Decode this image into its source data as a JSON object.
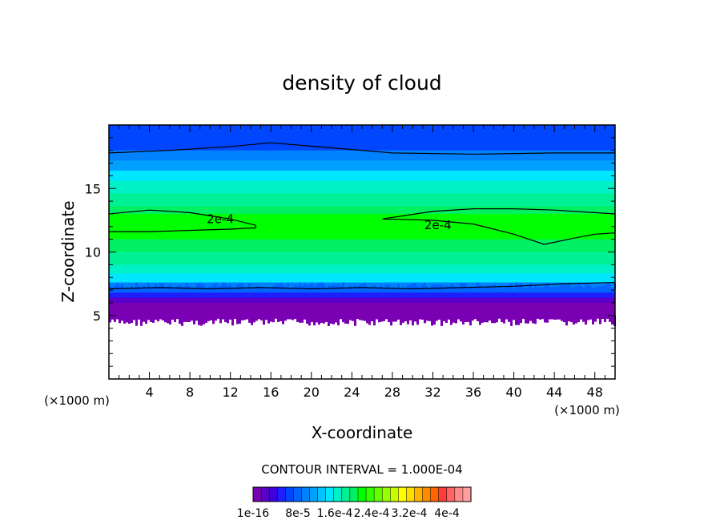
{
  "chart_data": {
    "type": "heatmap",
    "title": "density of cloud",
    "xlabel": "X-coordinate",
    "ylabel": "Z-coordinate",
    "x_unit": "(×1000 m)",
    "z_unit": "(×1000 m)",
    "xlim": [
      0,
      50
    ],
    "ylim": [
      0,
      20
    ],
    "x_ticks": [
      4,
      8,
      12,
      16,
      20,
      24,
      28,
      32,
      36,
      40,
      44,
      48
    ],
    "y_ticks": [
      5,
      10,
      15
    ],
    "contour_interval_text": "CONTOUR INTERVAL = 1.000E-04",
    "contour_label": "2e-4",
    "colorbar_labels": [
      "1e-16",
      "8e-5",
      "1.6e-4",
      "2.4e-4",
      "3.2e-4",
      "4e-4"
    ],
    "colorbar_colors": [
      "#7a00b4",
      "#5a00c8",
      "#3c00dc",
      "#1e1eff",
      "#0046ff",
      "#0064ff",
      "#0082ff",
      "#00a0ff",
      "#00c3ff",
      "#00e6ff",
      "#00f0c8",
      "#00f096",
      "#00f064",
      "#00ff00",
      "#32ff00",
      "#64ff00",
      "#96ff00",
      "#c8ff00",
      "#ffff00",
      "#ffdc00",
      "#ffb400",
      "#ff8c00",
      "#ff6400",
      "#ff3c3c",
      "#ff6464",
      "#ff8c8c",
      "#ffa0a0"
    ],
    "layers": [
      {
        "z_bottom": 18.0,
        "z_top": 20.0,
        "value": 7e-05
      },
      {
        "z_bottom": 17.2,
        "z_top": 18.0,
        "value": 0.0001
      },
      {
        "z_bottom": 16.4,
        "z_top": 17.2,
        "value": 0.00012
      },
      {
        "z_bottom": 15.6,
        "z_top": 16.4,
        "value": 0.00014
      },
      {
        "z_bottom": 14.6,
        "z_top": 15.6,
        "value": 0.00016
      },
      {
        "z_bottom": 13.6,
        "z_top": 14.6,
        "value": 0.00018
      },
      {
        "z_bottom": 13.0,
        "z_top": 13.6,
        "value": 0.00019
      },
      {
        "z_bottom": 11.0,
        "z_top": 13.0,
        "value": 0.000205
      },
      {
        "z_bottom": 10.0,
        "z_top": 11.0,
        "value": 0.00019
      },
      {
        "z_bottom": 9.0,
        "z_top": 10.0,
        "value": 0.00018
      },
      {
        "z_bottom": 8.3,
        "z_top": 9.0,
        "value": 0.00016
      },
      {
        "z_bottom": 7.6,
        "z_top": 8.3,
        "value": 0.00014
      },
      {
        "z_bottom": 7.1,
        "z_top": 7.6,
        "value": 0.0001
      },
      {
        "z_bottom": 6.8,
        "z_top": 7.1,
        "value": 8e-05
      },
      {
        "z_bottom": 6.4,
        "z_top": 6.8,
        "value": 5e-05
      },
      {
        "z_bottom": 6.0,
        "z_top": 6.4,
        "value": 3e-05
      },
      {
        "z_bottom": 5.5,
        "z_top": 6.0,
        "value": 1e-05
      },
      {
        "z_bottom": 5.0,
        "z_top": 5.5,
        "value": 1e-16
      }
    ],
    "contours": [
      {
        "x": [
          0,
          6,
          12,
          16,
          22,
          28,
          36,
          44,
          50
        ],
        "z": [
          17.8,
          18.0,
          18.3,
          18.6,
          18.2,
          17.8,
          17.7,
          17.8,
          17.8
        ]
      },
      {
        "x": [
          0,
          4,
          8,
          12,
          14.5,
          14.5,
          12,
          8,
          4,
          0
        ],
        "z": [
          13.0,
          13.3,
          13.1,
          12.6,
          12.1,
          11.9,
          11.8,
          11.7,
          11.6,
          11.6
        ]
      },
      {
        "x": [
          27,
          32,
          36,
          40,
          44,
          48,
          50,
          50,
          48,
          46,
          43,
          40,
          36,
          32,
          27
        ],
        "z": [
          12.6,
          13.2,
          13.4,
          13.4,
          13.3,
          13.1,
          13.0,
          11.5,
          11.4,
          11.1,
          10.6,
          11.4,
          12.2,
          12.5,
          12.6
        ]
      },
      {
        "x": [
          0,
          5,
          10,
          15,
          20,
          25,
          30,
          35,
          40,
          45,
          50
        ],
        "z": [
          7.1,
          7.2,
          7.1,
          7.2,
          7.1,
          7.2,
          7.1,
          7.2,
          7.3,
          7.5,
          7.6
        ]
      }
    ],
    "contour_label_positions": [
      {
        "x": 11,
        "z": 12.6
      },
      {
        "x": 32.5,
        "z": 12.1
      }
    ]
  }
}
